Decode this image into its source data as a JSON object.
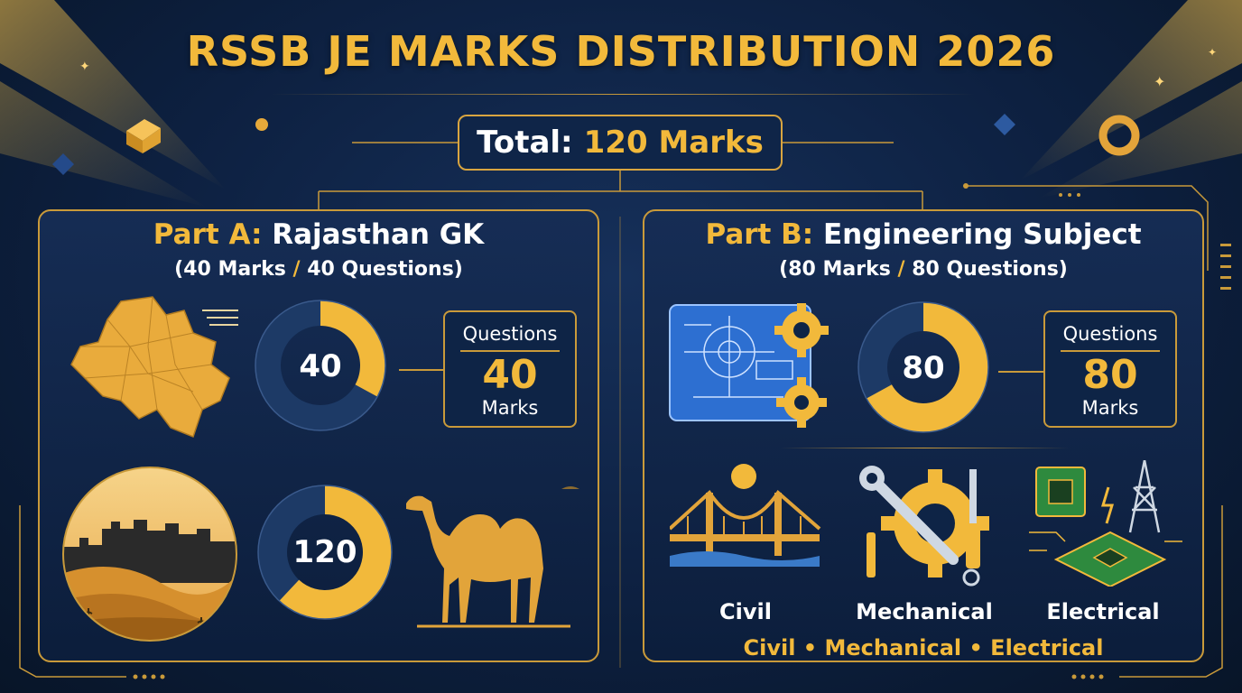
{
  "header": {
    "title": "RSSB JE MARKS DISTRIBUTION 2026"
  },
  "total": {
    "label": "Total:",
    "value": "120 Marks"
  },
  "part_a": {
    "title_prefix": "Part A:",
    "title_name": "Rajasthan GK",
    "subtitle_open": "(40 Marks",
    "subtitle_slash": "/",
    "subtitle_close": "40 Questions)",
    "donut_top": {
      "value": "40",
      "fraction": 0.33
    },
    "donut_bottom": {
      "value": "120",
      "fraction": 0.62
    },
    "qbox": {
      "questions_label": "Questions",
      "value": "40",
      "marks_label": "Marks"
    }
  },
  "part_b": {
    "title_prefix": "Part B:",
    "title_name": "Engineering Subject",
    "subtitle_open": "(80 Marks",
    "subtitle_slash": "/",
    "subtitle_close": "80 Questions)",
    "donut": {
      "value": "80",
      "fraction": 0.67
    },
    "qbox": {
      "questions_label": "Questions",
      "value": "80",
      "marks_label": "Marks"
    },
    "branches": [
      {
        "label": "Civil",
        "icon": "bridge-icon"
      },
      {
        "label": "Mechanical",
        "icon": "tools-gear-icon"
      },
      {
        "label": "Electrical",
        "icon": "circuit-tower-icon"
      }
    ],
    "branches_line": "Civil • Mechanical • Electrical"
  },
  "colors": {
    "gold": "#f2b93b",
    "navy": "#0d2040",
    "donut_track": "#1d3a66"
  }
}
